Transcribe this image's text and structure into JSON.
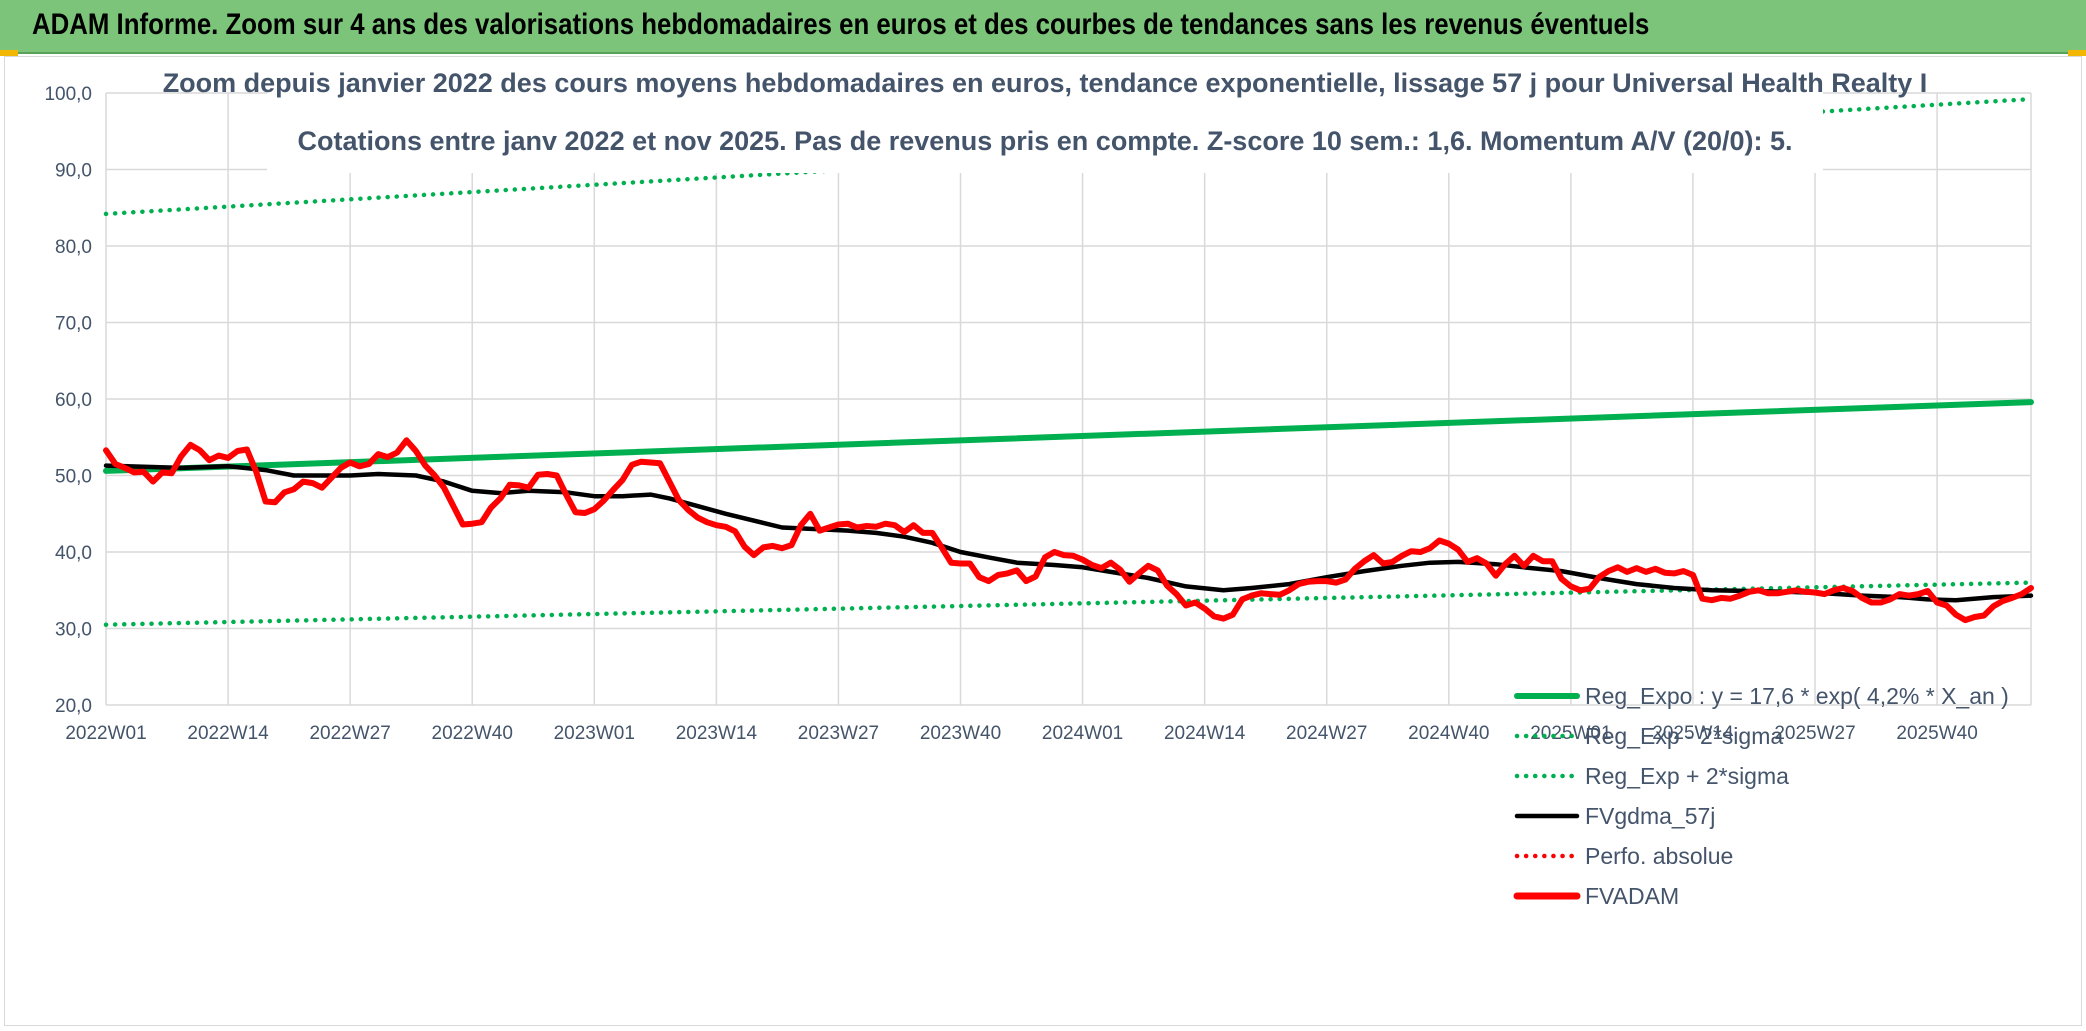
{
  "banner": {
    "title": "ADAM Informe. Zoom sur 4 ans des valorisations hebdomadaires en euros et des courbes de tendances sans les revenus éventuels"
  },
  "colors": {
    "banner_bg": "#7cc47a",
    "green": "#00b050",
    "black": "#000000",
    "red": "#ff0000",
    "text": "#44546a",
    "grid": "#d9d9d9"
  },
  "chart_data": {
    "type": "line",
    "title_line1": "Zoom depuis janvier 2022 des cours moyens hebdomadaires en euros, tendance exponentielle, lissage 57 j pour Universal Health Realty I",
    "title_line2": "Cotations entre janv 2022 et nov 2025. Pas de revenus pris en compte. Z-score 10 sem.: 1,6. Momentum A/V (20/0): 5.",
    "ylim": [
      20,
      100
    ],
    "y_ticks": [
      "20,0",
      "30,0",
      "40,0",
      "50,0",
      "60,0",
      "70,0",
      "80,0",
      "90,0",
      "100,0"
    ],
    "x_ticks": [
      "2022W01",
      "2022W14",
      "2022W27",
      "2022W40",
      "2023W01",
      "2023W14",
      "2023W27",
      "2023W40",
      "2024W01",
      "2024W14",
      "2024W27",
      "2024W40",
      "2025W01",
      "2025W14",
      "2025W27",
      "2025W40"
    ],
    "n_weeks": 206,
    "grid": "horizontal and vertical",
    "legend_position": "bottom-right",
    "legend": [
      "Reg_Expo : y = 17,6 * exp( 4,2% *  X_an )",
      "Reg_Exp - 2*sigma",
      "Reg_Exp + 2*sigma",
      "FVgdma_57j",
      "Perfo. absolue",
      "FVADAM"
    ],
    "series": [
      {
        "name": "Reg_Expo : y = 17,6 * exp( 4,2% *  X_an )",
        "style": "solid-thick",
        "color": "#00b050",
        "points": [
          [
            0,
            50.6
          ],
          [
            205,
            59.6
          ]
        ]
      },
      {
        "name": "Reg_Exp - 2*sigma",
        "style": "dotted",
        "color": "#00b050",
        "points": [
          [
            0,
            30.5
          ],
          [
            205,
            36.0
          ]
        ]
      },
      {
        "name": "Reg_Exp + 2*sigma",
        "style": "dotted",
        "color": "#00b050",
        "points": [
          [
            0,
            84.2
          ],
          [
            205,
            99.2
          ]
        ]
      },
      {
        "name": "FVgdma_57j",
        "style": "solid",
        "color": "#000000",
        "points": [
          [
            0,
            51.3
          ],
          [
            8,
            51.0
          ],
          [
            13,
            51.2
          ],
          [
            17,
            50.7
          ],
          [
            20,
            50.0
          ],
          [
            26,
            50.0
          ],
          [
            29,
            50.2
          ],
          [
            33,
            50.0
          ],
          [
            36,
            49.2
          ],
          [
            39,
            48.0
          ],
          [
            42,
            47.7
          ],
          [
            45,
            48.0
          ],
          [
            49,
            47.8
          ],
          [
            52,
            47.3
          ],
          [
            55,
            47.3
          ],
          [
            58,
            47.5
          ],
          [
            60,
            47.0
          ],
          [
            63,
            46.0
          ],
          [
            66,
            45.0
          ],
          [
            70,
            43.8
          ],
          [
            72,
            43.2
          ],
          [
            79,
            42.8
          ],
          [
            82,
            42.5
          ],
          [
            85,
            42.0
          ],
          [
            88,
            41.2
          ],
          [
            91,
            40.0
          ],
          [
            94,
            39.3
          ],
          [
            97,
            38.6
          ],
          [
            101,
            38.3
          ],
          [
            104,
            38.0
          ],
          [
            107,
            37.4
          ],
          [
            111,
            36.6
          ],
          [
            115,
            35.5
          ],
          [
            119,
            35.0
          ],
          [
            122,
            35.3
          ],
          [
            126,
            35.8
          ],
          [
            130,
            36.7
          ],
          [
            134,
            37.5
          ],
          [
            138,
            38.2
          ],
          [
            141,
            38.6
          ],
          [
            144,
            38.7
          ],
          [
            148,
            38.4
          ],
          [
            151,
            38.0
          ],
          [
            155,
            37.5
          ],
          [
            159,
            36.6
          ],
          [
            163,
            35.8
          ],
          [
            167,
            35.3
          ],
          [
            171,
            35.0
          ],
          [
            175,
            34.9
          ],
          [
            179,
            34.8
          ],
          [
            183,
            34.6
          ],
          [
            187,
            34.3
          ],
          [
            191,
            34.1
          ],
          [
            194,
            33.8
          ],
          [
            197,
            33.7
          ],
          [
            201,
            34.1
          ],
          [
            205,
            34.3
          ]
        ]
      },
      {
        "name": "FVADAM",
        "style": "solid-thick",
        "color": "#ff0000",
        "points": [
          [
            0,
            53.3
          ],
          [
            1,
            51.5
          ],
          [
            2,
            51.0
          ],
          [
            3,
            50.4
          ],
          [
            4,
            50.5
          ],
          [
            5,
            49.2
          ],
          [
            6,
            50.4
          ],
          [
            7,
            50.3
          ],
          [
            8,
            52.5
          ],
          [
            9,
            54.0
          ],
          [
            10,
            53.3
          ],
          [
            11,
            52.0
          ],
          [
            12,
            52.6
          ],
          [
            13,
            52.3
          ],
          [
            14,
            53.2
          ],
          [
            15,
            53.4
          ],
          [
            16,
            50.5
          ],
          [
            17,
            46.6
          ],
          [
            18,
            46.5
          ],
          [
            19,
            47.8
          ],
          [
            20,
            48.2
          ],
          [
            21,
            49.2
          ],
          [
            22,
            49.0
          ],
          [
            23,
            48.4
          ],
          [
            24,
            49.7
          ],
          [
            25,
            51.0
          ],
          [
            26,
            51.7
          ],
          [
            27,
            51.2
          ],
          [
            28,
            51.5
          ],
          [
            29,
            52.8
          ],
          [
            30,
            52.4
          ],
          [
            31,
            53.0
          ],
          [
            32,
            54.6
          ],
          [
            33,
            53.2
          ],
          [
            34,
            51.3
          ],
          [
            35,
            50.0
          ],
          [
            36,
            48.4
          ],
          [
            37,
            46.0
          ],
          [
            38,
            43.6
          ],
          [
            39,
            43.7
          ],
          [
            40,
            43.9
          ],
          [
            41,
            45.8
          ],
          [
            42,
            47.0
          ],
          [
            43,
            48.8
          ],
          [
            44,
            48.7
          ],
          [
            45,
            48.4
          ],
          [
            46,
            50.1
          ],
          [
            47,
            50.2
          ],
          [
            48,
            50.0
          ],
          [
            49,
            47.5
          ],
          [
            50,
            45.2
          ],
          [
            51,
            45.1
          ],
          [
            52,
            45.6
          ],
          [
            53,
            46.7
          ],
          [
            54,
            48.1
          ],
          [
            55,
            49.4
          ],
          [
            56,
            51.4
          ],
          [
            57,
            51.8
          ],
          [
            58,
            51.7
          ],
          [
            59,
            51.6
          ],
          [
            60,
            49.2
          ],
          [
            61,
            46.8
          ],
          [
            62,
            45.5
          ],
          [
            63,
            44.5
          ],
          [
            64,
            43.9
          ],
          [
            65,
            43.5
          ],
          [
            66,
            43.3
          ],
          [
            67,
            42.7
          ],
          [
            68,
            40.7
          ],
          [
            69,
            39.6
          ],
          [
            70,
            40.6
          ],
          [
            71,
            40.8
          ],
          [
            72,
            40.5
          ],
          [
            73,
            40.9
          ],
          [
            74,
            43.5
          ],
          [
            75,
            45.0
          ],
          [
            76,
            42.8
          ],
          [
            77,
            43.2
          ],
          [
            78,
            43.6
          ],
          [
            79,
            43.7
          ],
          [
            80,
            43.2
          ],
          [
            81,
            43.4
          ],
          [
            82,
            43.3
          ],
          [
            83,
            43.7
          ],
          [
            84,
            43.5
          ],
          [
            85,
            42.6
          ],
          [
            86,
            43.5
          ],
          [
            87,
            42.5
          ],
          [
            88,
            42.5
          ],
          [
            89,
            40.6
          ],
          [
            90,
            38.6
          ],
          [
            91,
            38.5
          ],
          [
            92,
            38.5
          ],
          [
            93,
            36.7
          ],
          [
            94,
            36.2
          ],
          [
            95,
            37.0
          ],
          [
            96,
            37.2
          ],
          [
            97,
            37.6
          ],
          [
            98,
            36.2
          ],
          [
            99,
            36.8
          ],
          [
            100,
            39.3
          ],
          [
            101,
            40.0
          ],
          [
            102,
            39.6
          ],
          [
            103,
            39.5
          ],
          [
            104,
            39.0
          ],
          [
            105,
            38.3
          ],
          [
            106,
            37.9
          ],
          [
            107,
            38.6
          ],
          [
            108,
            37.7
          ],
          [
            109,
            36.1
          ],
          [
            110,
            37.2
          ],
          [
            111,
            38.2
          ],
          [
            112,
            37.6
          ],
          [
            113,
            35.6
          ],
          [
            114,
            34.5
          ],
          [
            115,
            33.0
          ],
          [
            116,
            33.4
          ],
          [
            117,
            32.6
          ],
          [
            118,
            31.6
          ],
          [
            119,
            31.3
          ],
          [
            120,
            31.8
          ],
          [
            121,
            33.8
          ],
          [
            122,
            34.3
          ],
          [
            123,
            34.6
          ],
          [
            124,
            34.5
          ],
          [
            125,
            34.4
          ],
          [
            126,
            35.0
          ],
          [
            127,
            35.8
          ],
          [
            128,
            36.1
          ],
          [
            129,
            36.2
          ],
          [
            130,
            36.2
          ],
          [
            131,
            36.0
          ],
          [
            132,
            36.4
          ],
          [
            133,
            37.8
          ],
          [
            134,
            38.8
          ],
          [
            135,
            39.6
          ],
          [
            136,
            38.5
          ],
          [
            137,
            38.7
          ],
          [
            138,
            39.5
          ],
          [
            139,
            40.1
          ],
          [
            140,
            40.0
          ],
          [
            141,
            40.5
          ],
          [
            142,
            41.5
          ],
          [
            143,
            41.1
          ],
          [
            144,
            40.3
          ],
          [
            145,
            38.7
          ],
          [
            146,
            39.2
          ],
          [
            147,
            38.5
          ],
          [
            148,
            36.9
          ],
          [
            149,
            38.4
          ],
          [
            150,
            39.5
          ],
          [
            151,
            38.2
          ],
          [
            152,
            39.5
          ],
          [
            153,
            38.8
          ],
          [
            154,
            38.8
          ],
          [
            155,
            36.5
          ],
          [
            156,
            35.5
          ],
          [
            157,
            35.0
          ],
          [
            158,
            35.2
          ],
          [
            159,
            36.7
          ],
          [
            160,
            37.5
          ],
          [
            161,
            38.0
          ],
          [
            162,
            37.4
          ],
          [
            163,
            37.9
          ],
          [
            164,
            37.4
          ],
          [
            165,
            37.8
          ],
          [
            166,
            37.3
          ],
          [
            167,
            37.2
          ],
          [
            168,
            37.5
          ],
          [
            169,
            37.0
          ],
          [
            170,
            33.9
          ],
          [
            171,
            33.7
          ],
          [
            172,
            34.0
          ],
          [
            173,
            33.9
          ],
          [
            174,
            34.3
          ],
          [
            175,
            34.8
          ],
          [
            176,
            35.0
          ],
          [
            177,
            34.6
          ],
          [
            178,
            34.6
          ],
          [
            179,
            34.8
          ],
          [
            180,
            35.0
          ],
          [
            181,
            34.8
          ],
          [
            182,
            34.7
          ],
          [
            183,
            34.5
          ],
          [
            184,
            35.0
          ],
          [
            185,
            35.3
          ],
          [
            186,
            34.9
          ],
          [
            187,
            34.0
          ],
          [
            188,
            33.4
          ],
          [
            189,
            33.4
          ],
          [
            190,
            33.8
          ],
          [
            191,
            34.5
          ],
          [
            192,
            34.3
          ],
          [
            193,
            34.5
          ],
          [
            194,
            34.9
          ],
          [
            195,
            33.4
          ],
          [
            196,
            33.0
          ],
          [
            197,
            31.8
          ],
          [
            198,
            31.1
          ],
          [
            199,
            31.5
          ],
          [
            200,
            31.7
          ],
          [
            201,
            32.9
          ],
          [
            202,
            33.6
          ],
          [
            203,
            34.0
          ],
          [
            204,
            34.5
          ],
          [
            205,
            35.3
          ]
        ]
      }
    ]
  }
}
